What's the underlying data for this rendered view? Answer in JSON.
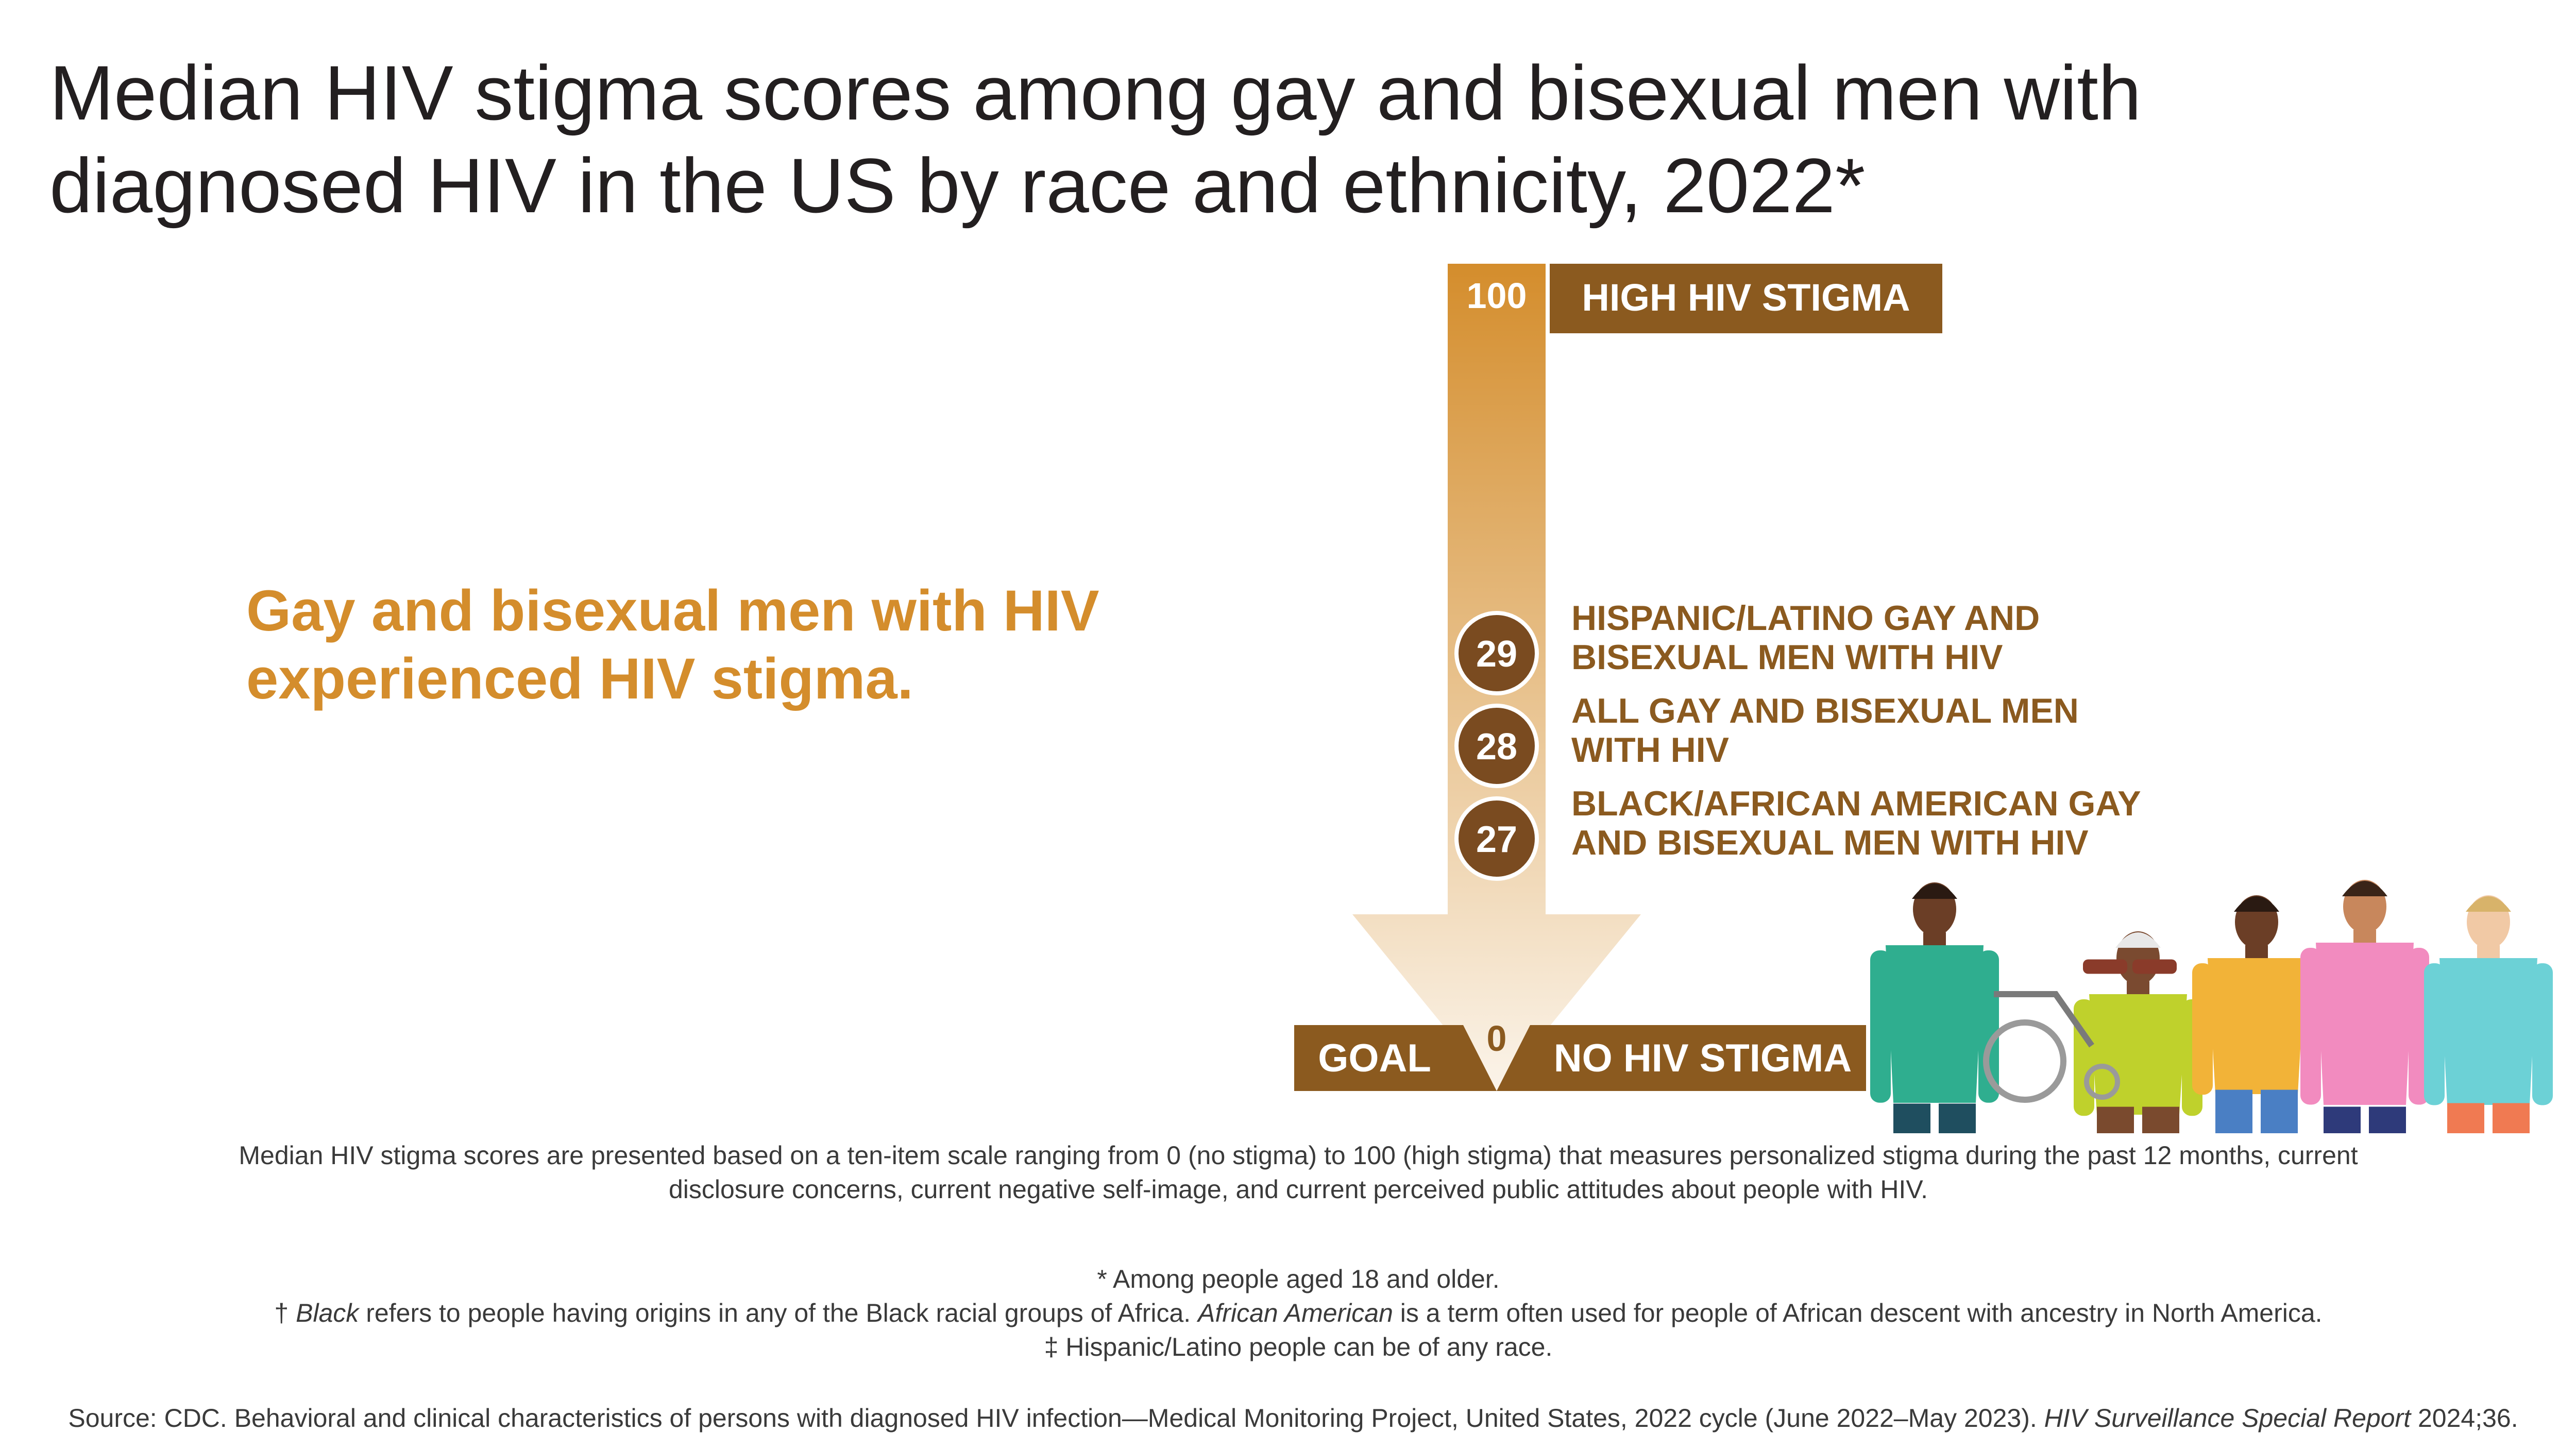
{
  "title_line1": "Median HIV stigma scores among gay and bisexual men with",
  "title_line2": "diagnosed HIV in the US by race and ethnicity, 2022*",
  "callout_line1": "Gay and bisexual men with HIV",
  "callout_line2": "experienced HIV stigma.",
  "chart_data": {
    "type": "bar",
    "ylim": [
      0,
      100
    ],
    "scale_top_label": "100",
    "scale_bottom_label": "0",
    "top_banner": "HIGH HIV STIGMA",
    "bottom_left_banner": "GOAL",
    "bottom_right_banner": "NO HIV STIGMA",
    "categories": [
      "HISPANIC/LATINO GAY AND BISEXUAL MEN WITH HIV",
      "ALL GAY AND BISEXUAL MEN WITH HIV",
      "BLACK/AFRICAN AMERICAN GAY AND BISEXUAL MEN WITH HIV"
    ],
    "category_lines": [
      [
        "HISPANIC/LATINO GAY AND",
        "BISEXUAL MEN WITH HIV"
      ],
      [
        "ALL GAY AND BISEXUAL MEN",
        "WITH HIV"
      ],
      [
        "BLACK/AFRICAN AMERICAN GAY",
        "AND BISEXUAL MEN WITH HIV"
      ]
    ],
    "values": [
      29,
      28,
      27
    ]
  },
  "colors": {
    "arrow_top": "#d48d2c",
    "arrow_bottom": "#fbf4ea",
    "banner": "#8b5a1f",
    "marker": "#7a4b20",
    "label": "#8b5a1f",
    "callout": "#d48d2c"
  },
  "note_line1": "Median HIV stigma scores are presented based on a ten-item scale ranging from 0 (no stigma) to 100 (high stigma) that measures personalized stigma during the past 12 months, current",
  "note_line2": "disclosure concerns, current negative self-image, and current perceived public attitudes about people with HIV.",
  "footnote_1": "* Among people aged 18 and older.",
  "footnote_2_prefix": "† ",
  "footnote_2_term1": "Black",
  "footnote_2_mid": " refers to people having origins in any of the Black racial groups of Africa. ",
  "footnote_2_term2": "African American",
  "footnote_2_suffix": " is a term often used for people of African descent with ancestry in North America.",
  "footnote_3": "‡ Hispanic/Latino people can be of any race.",
  "source_main": "Source: CDC. Behavioral and clinical characteristics of persons with diagnosed HIV infection—Medical Monitoring Project, United States, 2022 cycle (June 2022–May 2023). ",
  "source_journal": "HIV Surveillance Special Report",
  "source_tail": " 2024;36.",
  "illustration": "people-group-illustration"
}
